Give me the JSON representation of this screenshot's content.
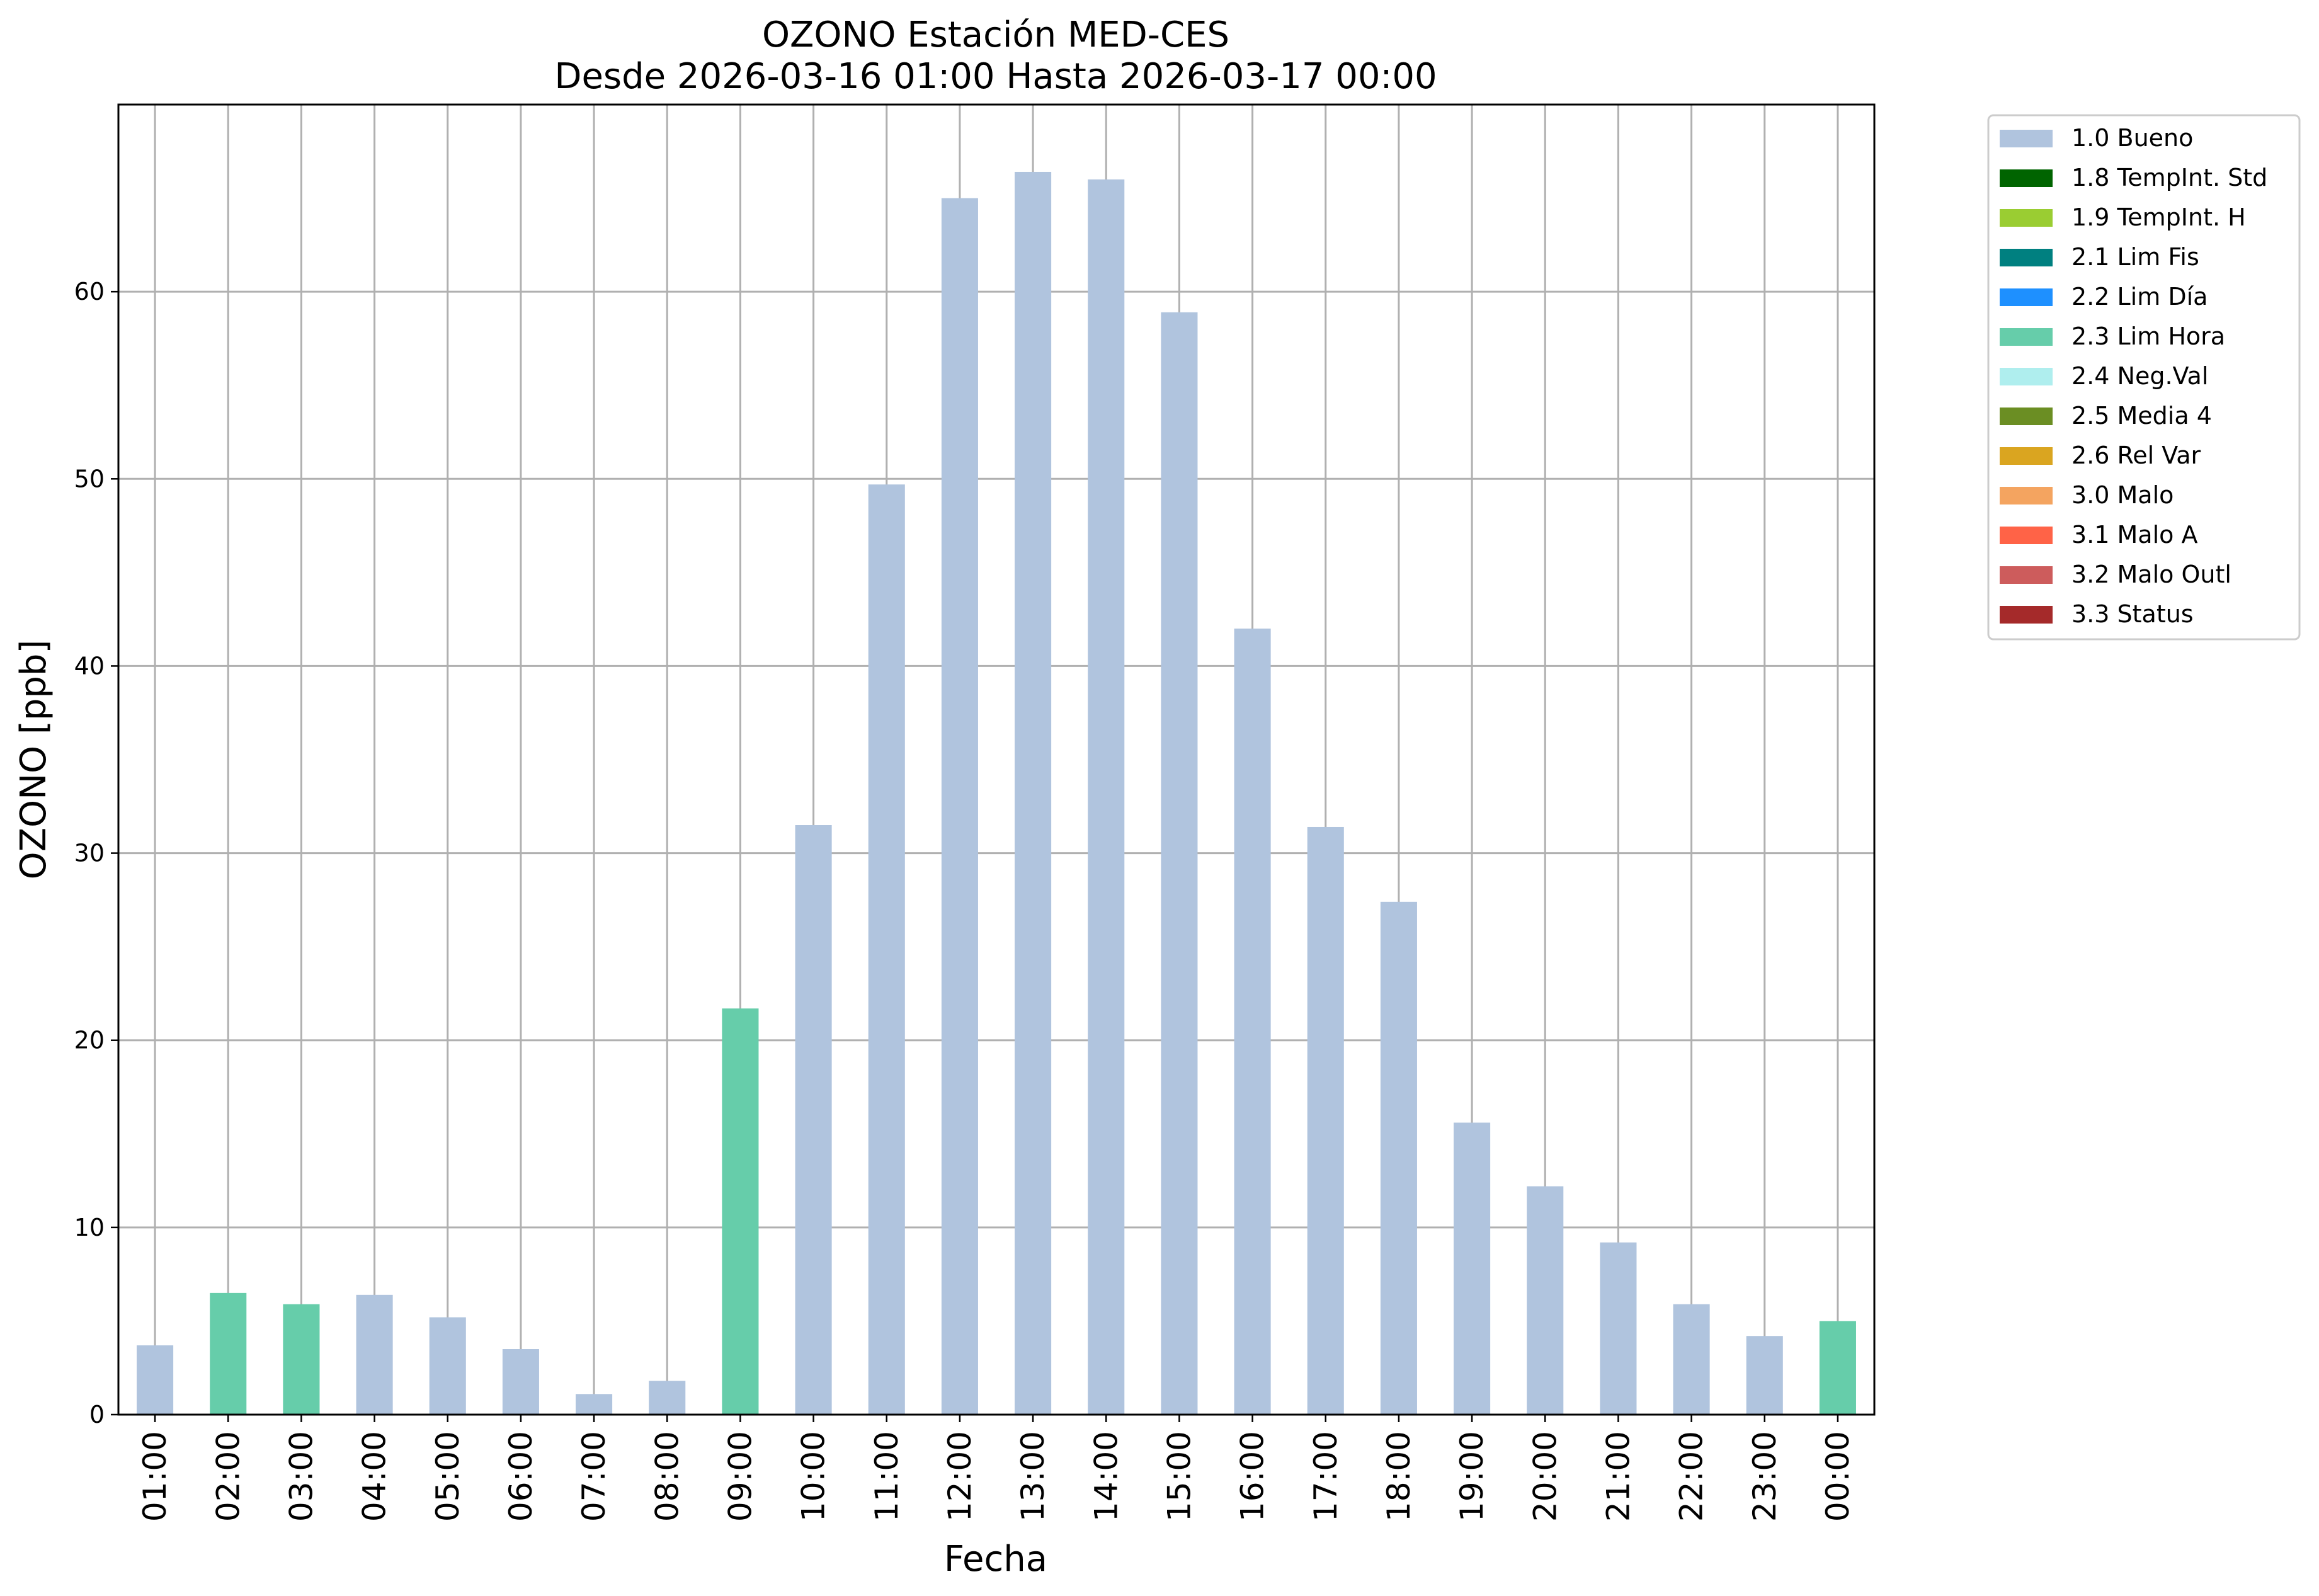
{
  "chart_data": {
    "type": "bar",
    "title": "OZONO Estación MED-CES",
    "subtitle": "Desde 2026-03-16 01:00 Hasta 2026-03-17 00:00",
    "xlabel": "Fecha",
    "ylabel": "OZONO [ppb]",
    "ylim": [
      0,
      70
    ],
    "yticks": [
      0,
      10,
      20,
      30,
      40,
      50,
      60
    ],
    "grid": true,
    "legend_position": "outside-top-right",
    "categories": [
      "01:00",
      "02:00",
      "03:00",
      "04:00",
      "05:00",
      "06:00",
      "07:00",
      "08:00",
      "09:00",
      "10:00",
      "11:00",
      "12:00",
      "13:00",
      "14:00",
      "15:00",
      "16:00",
      "17:00",
      "18:00",
      "19:00",
      "20:00",
      "21:00",
      "22:00",
      "23:00",
      "00:00"
    ],
    "values": [
      3.7,
      6.5,
      5.9,
      6.4,
      5.2,
      3.5,
      1.1,
      1.8,
      21.7,
      31.5,
      49.7,
      65.0,
      66.4,
      66.0,
      58.9,
      42.0,
      31.4,
      27.4,
      15.6,
      12.2,
      9.2,
      5.9,
      4.2,
      5.0
    ],
    "flags": [
      "1.0 Bueno",
      "2.3 Lim Hora",
      "2.3 Lim Hora",
      "1.0 Bueno",
      "1.0 Bueno",
      "1.0 Bueno",
      "1.0 Bueno",
      "1.0 Bueno",
      "2.3 Lim Hora",
      "1.0 Bueno",
      "1.0 Bueno",
      "1.0 Bueno",
      "1.0 Bueno",
      "1.0 Bueno",
      "1.0 Bueno",
      "1.0 Bueno",
      "1.0 Bueno",
      "1.0 Bueno",
      "1.0 Bueno",
      "1.0 Bueno",
      "1.0 Bueno",
      "1.0 Bueno",
      "1.0 Bueno",
      "2.3 Lim Hora"
    ],
    "legend": [
      {
        "label": "1.0 Bueno",
        "color": "#b0c4de"
      },
      {
        "label": "1.8 TempInt. Std",
        "color": "#006400"
      },
      {
        "label": "1.9 TempInt. H",
        "color": "#9acd32"
      },
      {
        "label": "2.1 Lim Fis",
        "color": "#008080"
      },
      {
        "label": "2.2 Lim Día",
        "color": "#1e90ff"
      },
      {
        "label": "2.3 Lim Hora",
        "color": "#66cdaa"
      },
      {
        "label": "2.4 Neg.Val",
        "color": "#afeeee"
      },
      {
        "label": "2.5 Media 4",
        "color": "#6b8e23"
      },
      {
        "label": "2.6 Rel Var",
        "color": "#daa520"
      },
      {
        "label": "3.0 Malo",
        "color": "#f4a460"
      },
      {
        "label": "3.1 Malo A",
        "color": "#ff6347"
      },
      {
        "label": "3.2 Malo Outl",
        "color": "#cd5c5c"
      },
      {
        "label": "3.3 Status",
        "color": "#a52a2a"
      }
    ]
  }
}
